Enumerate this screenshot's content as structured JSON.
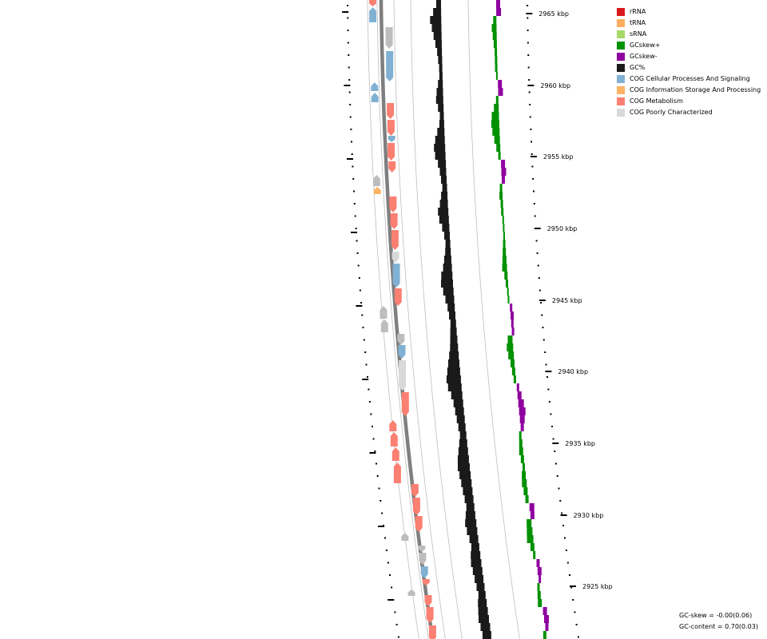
{
  "colors": {
    "rRNA": "#d7191c",
    "tRNA": "#fdae61",
    "sRNA": "#a6d96a",
    "gcskew_pos": "#009100",
    "gcskew_neg": "#8f00a0",
    "gc_content": "#1a1a1a",
    "cog_cellular": "#80b1d3",
    "cog_info": "#fdb462",
    "cog_metabolism": "#fb8072",
    "cog_poorly": "#d9d9d9",
    "cog_none": "#bdbdbd",
    "backbone": "#7f7f7f",
    "ring_line": "#b0b0b0"
  },
  "legend": [
    {
      "label": "rRNA",
      "color": "#d7191c"
    },
    {
      "label": "tRNA",
      "color": "#fdae61"
    },
    {
      "label": "sRNA",
      "color": "#a6d96a"
    },
    {
      "label": "GCskew+",
      "color": "#009100"
    },
    {
      "label": "GCskew-",
      "color": "#8f00a0"
    },
    {
      "label": "GC%",
      "color": "#1a1a1a"
    },
    {
      "label": "COG Cellular Processes And Signaling",
      "color": "#80b1d3"
    },
    {
      "label": "COG Information Storage And Processing",
      "color": "#fdb462"
    },
    {
      "label": "COG Metabolism",
      "color": "#fb8072"
    },
    {
      "label": "COG Poorly Characterized",
      "color": "#d9d9d9"
    }
  ],
  "ticks": {
    "unit": "kbp",
    "labels": [
      "2965 kbp",
      "2960 kbp",
      "2955 kbp",
      "2950 kbp",
      "2945 kbp",
      "2940 kbp",
      "2935 kbp",
      "2930 kbp",
      "2925 kbp"
    ]
  },
  "stats": {
    "gc_skew": "GC-skew = -0.00(0.06)",
    "gc_content": "GC-content = 0.70(0.03)"
  }
}
